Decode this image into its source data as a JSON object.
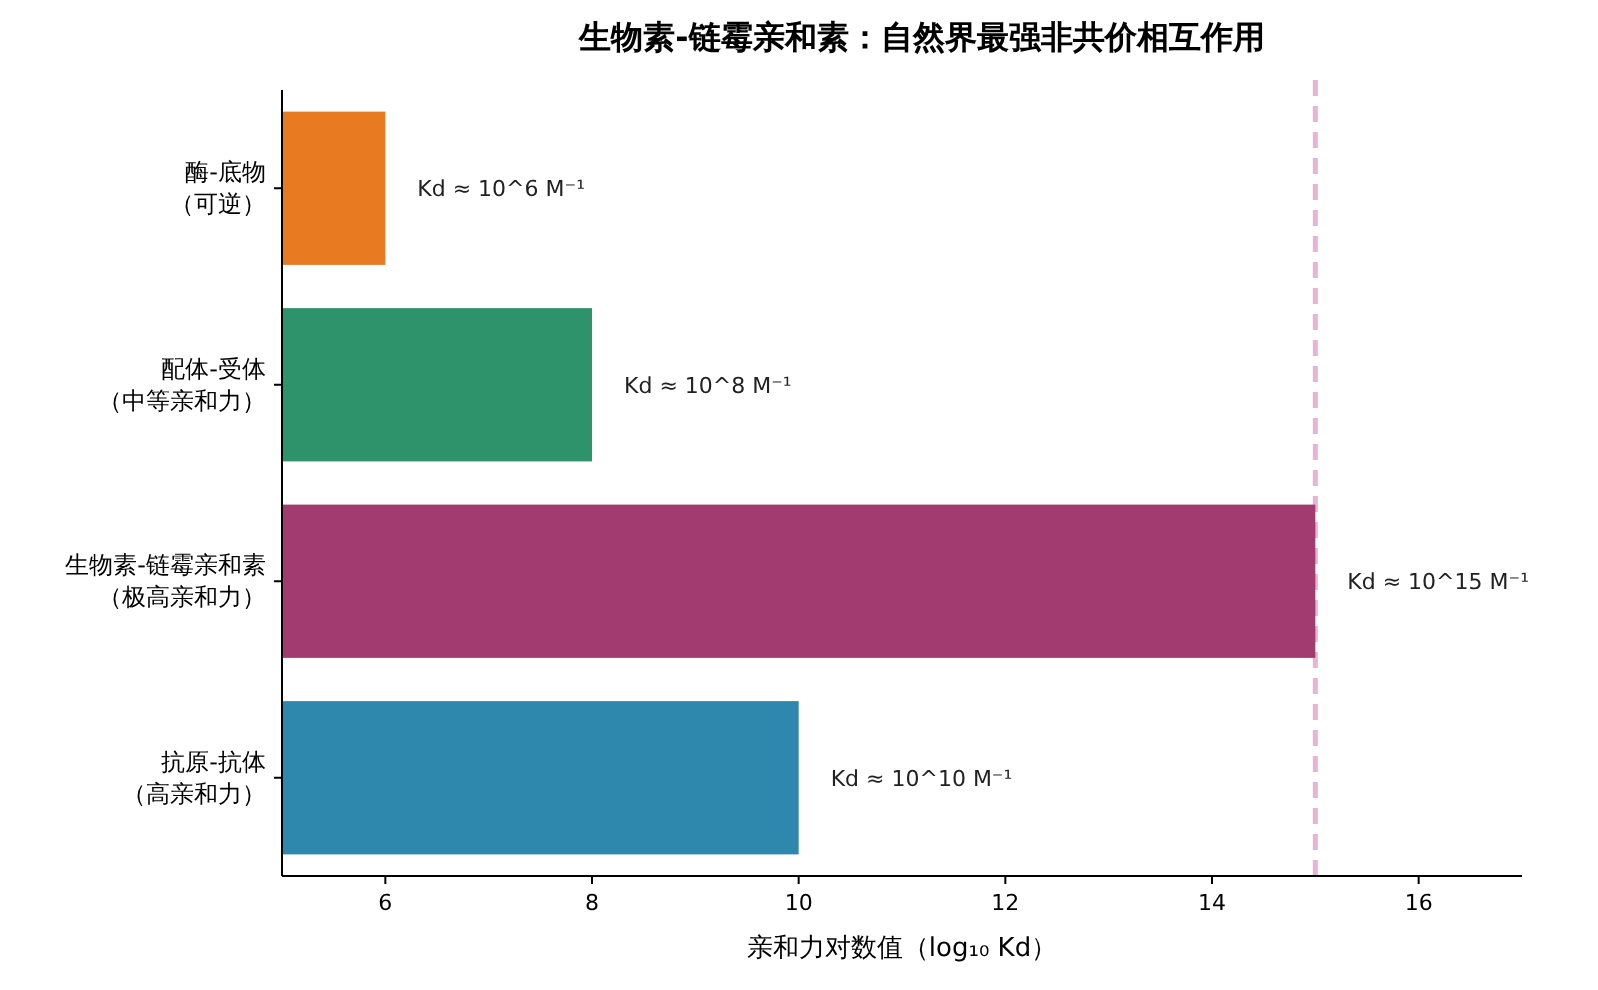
{
  "chart_data": {
    "type": "bar",
    "orientation": "horizontal",
    "title": "生物素-链霉亲和素：自然界最强非共价相互作用",
    "xlabel": "亲和力对数值（log₁₀ Kd）",
    "categories": [
      "酶-底物（可逆）",
      "配体-受体（中等亲和力）",
      "生物素-链霉亲和素（极高亲和力）",
      "抗原-抗体（高亲和力）"
    ],
    "values": [
      6,
      8,
      15,
      10
    ],
    "colors": [
      "#e87a22",
      "#2e936a",
      "#a23b70",
      "#2e87ac"
    ],
    "value_labels": [
      "Kd ≈ 10^6 M⁻¹",
      "Kd ≈ 10^8 M⁻¹",
      "Kd ≈ 10^15 M⁻¹",
      "Kd ≈ 10^10 M⁻¹"
    ],
    "xlim": [
      5,
      17
    ],
    "xticks": [
      6,
      8,
      10,
      12,
      14,
      16
    ],
    "ref_lines": [
      {
        "axis": "x",
        "value": 15,
        "color": "#e8b4d4",
        "line_style": "dashed"
      }
    ],
    "grid": false
  }
}
